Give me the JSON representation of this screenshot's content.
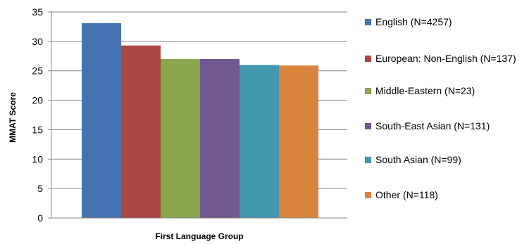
{
  "chart_data": {
    "type": "bar",
    "xlabel": "First Language Group",
    "ylabel": "MMAT Score",
    "ylim": [
      0,
      35
    ],
    "yticks": [
      0,
      5,
      10,
      15,
      20,
      25,
      30,
      35
    ],
    "grid": true,
    "legend_position": "right",
    "series": [
      {
        "name": "English (N=4257)",
        "value": 33.1,
        "color": "#4573B2"
      },
      {
        "name": "European: Non-English (N=137)",
        "value": 29.3,
        "color": "#AA4643"
      },
      {
        "name": "Middle-Eastern (N=23)",
        "value": 27.0,
        "color": "#89A54E"
      },
      {
        "name": "South-East Asian (N=131)",
        "value": 27.0,
        "color": "#71588F"
      },
      {
        "name": "South Asian (N=99)",
        "value": 26.0,
        "color": "#4198AF"
      },
      {
        "name": "Other (N=118)",
        "value": 25.9,
        "color": "#DB843D"
      }
    ]
  }
}
